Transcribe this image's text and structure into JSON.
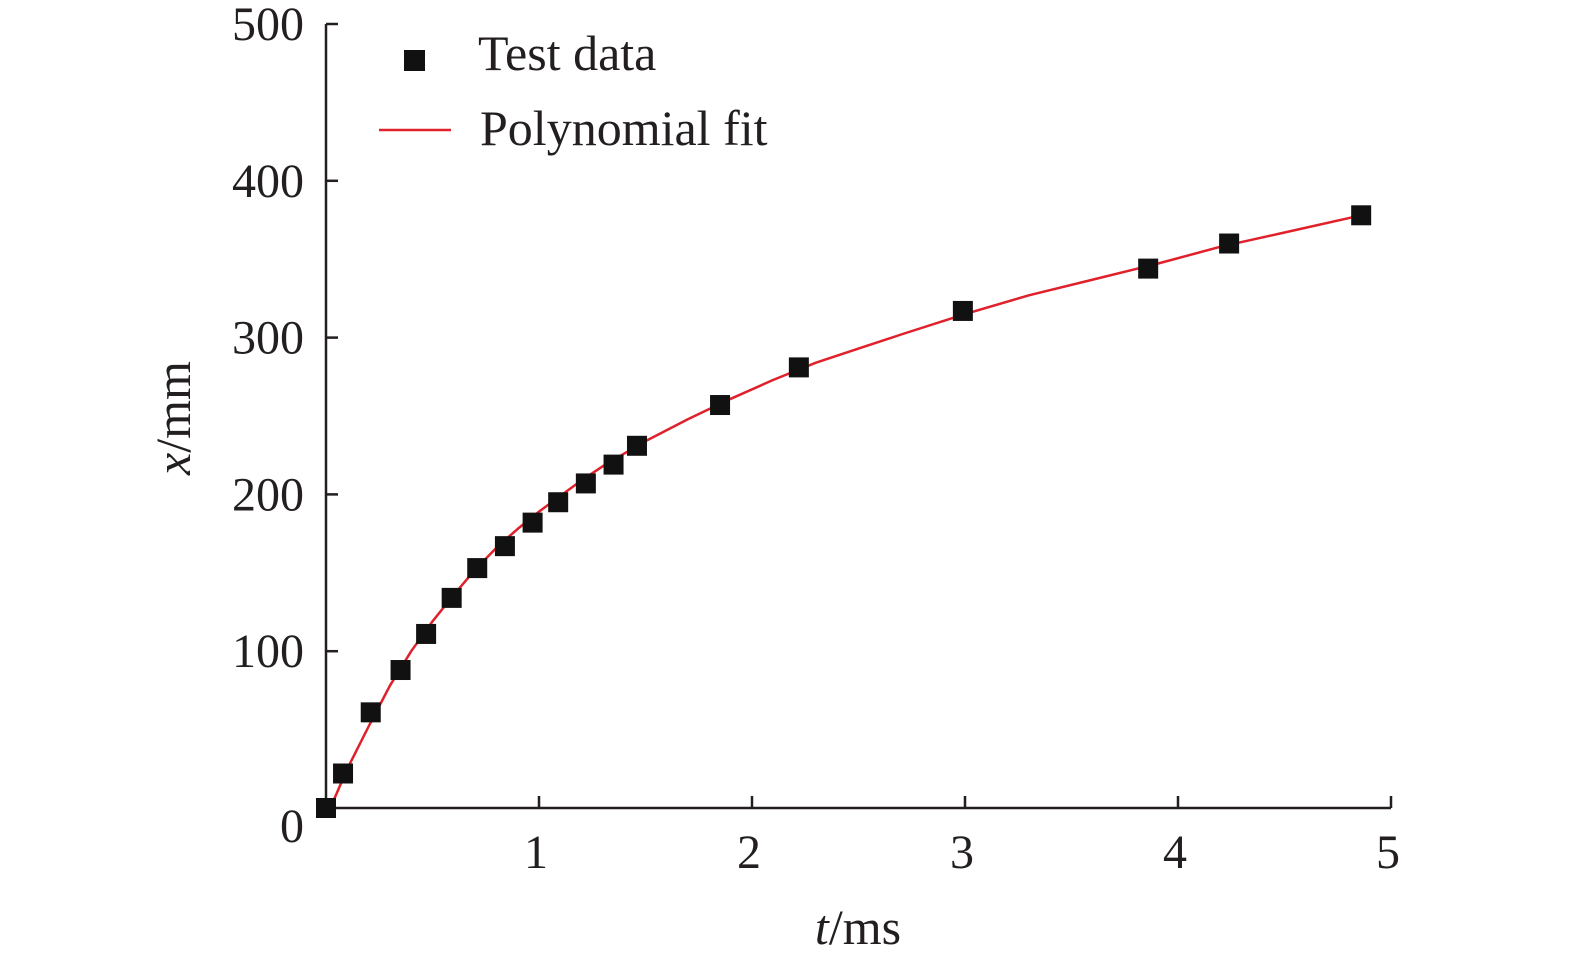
{
  "chart_data": {
    "type": "scatter",
    "title": "",
    "xlabel": {
      "var": "t",
      "unit": "/ms"
    },
    "ylabel": {
      "var": "x",
      "unit": "/mm"
    },
    "xlim": [
      0,
      5
    ],
    "ylim": [
      0,
      500
    ],
    "x_ticks": [
      0,
      1,
      2,
      3,
      4,
      5
    ],
    "y_ticks": [
      0,
      100,
      200,
      300,
      400,
      500
    ],
    "x_tick_labels": [
      "1",
      "2",
      "3",
      "4",
      "5"
    ],
    "y_tick_labels": [
      "0",
      "100",
      "200",
      "300",
      "400",
      "500"
    ],
    "grid": false,
    "legend_position": "top-left",
    "series": [
      {
        "name": "Test data",
        "kind": "marker",
        "marker": "square",
        "color": "#111111",
        "x": [
          0.0,
          0.08,
          0.21,
          0.35,
          0.47,
          0.59,
          0.71,
          0.84,
          0.97,
          1.09,
          1.22,
          1.35,
          1.46,
          1.85,
          2.22,
          2.99,
          3.86,
          4.24,
          4.86
        ],
        "y": [
          0,
          22,
          61,
          88,
          111,
          134,
          153,
          167,
          182,
          195,
          207,
          219,
          231,
          257,
          281,
          317,
          344,
          360,
          378
        ]
      },
      {
        "name": "Polynomial fit",
        "kind": "line",
        "color": "#e0202a",
        "x": [
          0.03,
          0.1,
          0.2,
          0.3,
          0.4,
          0.5,
          0.6,
          0.7,
          0.8,
          0.9,
          1.0,
          1.1,
          1.2,
          1.3,
          1.4,
          1.5,
          1.7,
          1.9,
          2.1,
          2.3,
          2.5,
          2.7,
          3.0,
          3.3,
          3.6,
          3.9,
          4.2,
          4.5,
          4.86
        ],
        "y": [
          3,
          25,
          52,
          78,
          100,
          119,
          136,
          152,
          166,
          178,
          189,
          199,
          209,
          218,
          226,
          234,
          248,
          261,
          273,
          284,
          293,
          302,
          315,
          327,
          337,
          347,
          358,
          367,
          378
        ]
      }
    ]
  }
}
